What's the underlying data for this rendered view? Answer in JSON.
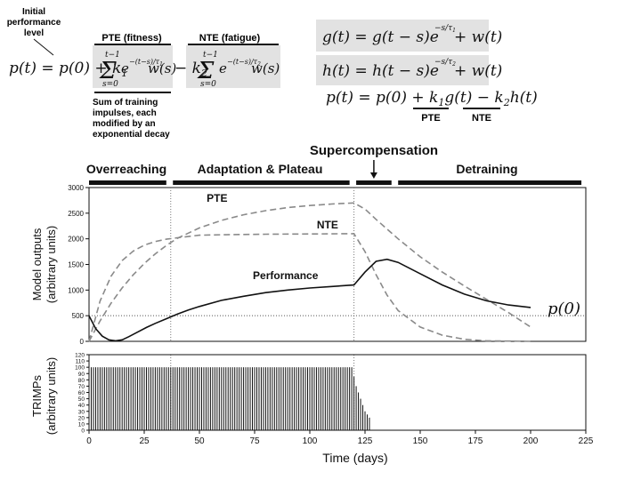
{
  "equations": {
    "initial_label": [
      "Initial",
      "performance",
      "level"
    ],
    "pte_label": "PTE (fitness)",
    "nte_label": "NTE (fatigue)",
    "sum_label": [
      "Sum of training",
      "impulses, each",
      "modified by an",
      "exponential decay"
    ],
    "pte_short": "PTE",
    "nte_short": "NTE",
    "formula_main": "p(t) = p(0) + k₁ Σ e^-(t−s)/τ₁ w(s) − k₂ Σ e^-(t−s)/τ₂ w(s)",
    "formula_g": "g(t) = g(t − s) e^(−s/τ₁) + w(t)",
    "formula_h": "h(t) = h(t − s) e^(−s/τ₂) + w(t)",
    "formula_p": "p(t) = p(0) + k₁ g(t) − k₂ h(t)"
  },
  "phases": [
    {
      "label": "Overreaching",
      "start": 0,
      "end": 35
    },
    {
      "label": "Adaptation & Plateau",
      "start": 38,
      "end": 118
    },
    {
      "label": "Supercompensation",
      "start": 121,
      "end": 137,
      "arrow_at": 129
    },
    {
      "label": "Detraining",
      "start": 140,
      "end": 223
    }
  ],
  "chart_data": [
    {
      "type": "line",
      "ylabel": "Model outputs (arbitrary units)",
      "xlim": [
        0,
        225
      ],
      "ylim": [
        0,
        3000
      ],
      "yticks": [
        0,
        500,
        1000,
        1500,
        2000,
        2500,
        3000
      ],
      "grid": false,
      "vlines": [
        37,
        120
      ],
      "hline": {
        "y": 500,
        "label": "p(0)"
      },
      "series": [
        {
          "name": "PTE",
          "style": "dashed",
          "color": "#8a8a8a",
          "x": [
            0,
            5,
            10,
            15,
            20,
            25,
            30,
            35,
            40,
            50,
            60,
            70,
            80,
            90,
            100,
            110,
            120,
            125,
            130,
            140,
            150,
            160,
            170,
            180,
            190,
            200
          ],
          "y": [
            0,
            398,
            745,
            1043,
            1297,
            1517,
            1706,
            1869,
            2009,
            2213,
            2360,
            2470,
            2550,
            2610,
            2650,
            2680,
            2700,
            2580,
            2380,
            2000,
            1650,
            1350,
            1080,
            820,
            560,
            280
          ]
        },
        {
          "name": "NTE",
          "style": "dashed",
          "color": "#8a8a8a",
          "x": [
            0,
            5,
            10,
            15,
            20,
            25,
            30,
            35,
            40,
            50,
            60,
            80,
            100,
            120,
            125,
            130,
            135,
            140,
            150,
            160,
            170,
            180,
            200
          ],
          "y": [
            0,
            785,
            1272,
            1574,
            1760,
            1876,
            1948,
            1992,
            2020,
            2070,
            2080,
            2090,
            2095,
            2100,
            1750,
            1300,
            900,
            600,
            280,
            120,
            40,
            10,
            0
          ]
        },
        {
          "name": "Performance",
          "style": "solid",
          "color": "#111111",
          "x": [
            0,
            3,
            6,
            9,
            12,
            15,
            18,
            22,
            26,
            30,
            35,
            40,
            45,
            50,
            60,
            70,
            80,
            90,
            100,
            110,
            120,
            125,
            130,
            135,
            140,
            150,
            160,
            170,
            180,
            190,
            200
          ],
          "y": [
            500,
            250,
            100,
            30,
            10,
            30,
            90,
            180,
            270,
            350,
            440,
            530,
            610,
            680,
            800,
            880,
            950,
            1000,
            1040,
            1070,
            1100,
            1350,
            1560,
            1600,
            1540,
            1320,
            1100,
            920,
            790,
            710,
            660
          ]
        }
      ],
      "annotations": [
        {
          "text": "PTE",
          "x": 58,
          "y": 2720
        },
        {
          "text": "NTE",
          "x": 108,
          "y": 2200
        },
        {
          "text": "Performance",
          "x": 89,
          "y": 1210
        }
      ]
    },
    {
      "type": "bar",
      "xlabel": "Time (days)",
      "ylabel": "TRIMPs (arbitrary units)",
      "xlim": [
        0,
        225
      ],
      "ylim": [
        0,
        120
      ],
      "xticks": [
        0,
        25,
        50,
        75,
        100,
        125,
        150,
        175,
        200,
        225
      ],
      "yticks": [
        0,
        10,
        20,
        30,
        40,
        50,
        60,
        70,
        80,
        90,
        100,
        110,
        120
      ],
      "grid": false,
      "bars": {
        "constant": {
          "start": 1,
          "end": 119,
          "value": 100
        },
        "taper": [
          {
            "x": 120,
            "y": 85
          },
          {
            "x": 121,
            "y": 70
          },
          {
            "x": 122,
            "y": 60
          },
          {
            "x": 123,
            "y": 50
          },
          {
            "x": 124,
            "y": 40
          },
          {
            "x": 125,
            "y": 30
          },
          {
            "x": 126,
            "y": 25
          },
          {
            "x": 127,
            "y": 20
          }
        ]
      }
    }
  ]
}
